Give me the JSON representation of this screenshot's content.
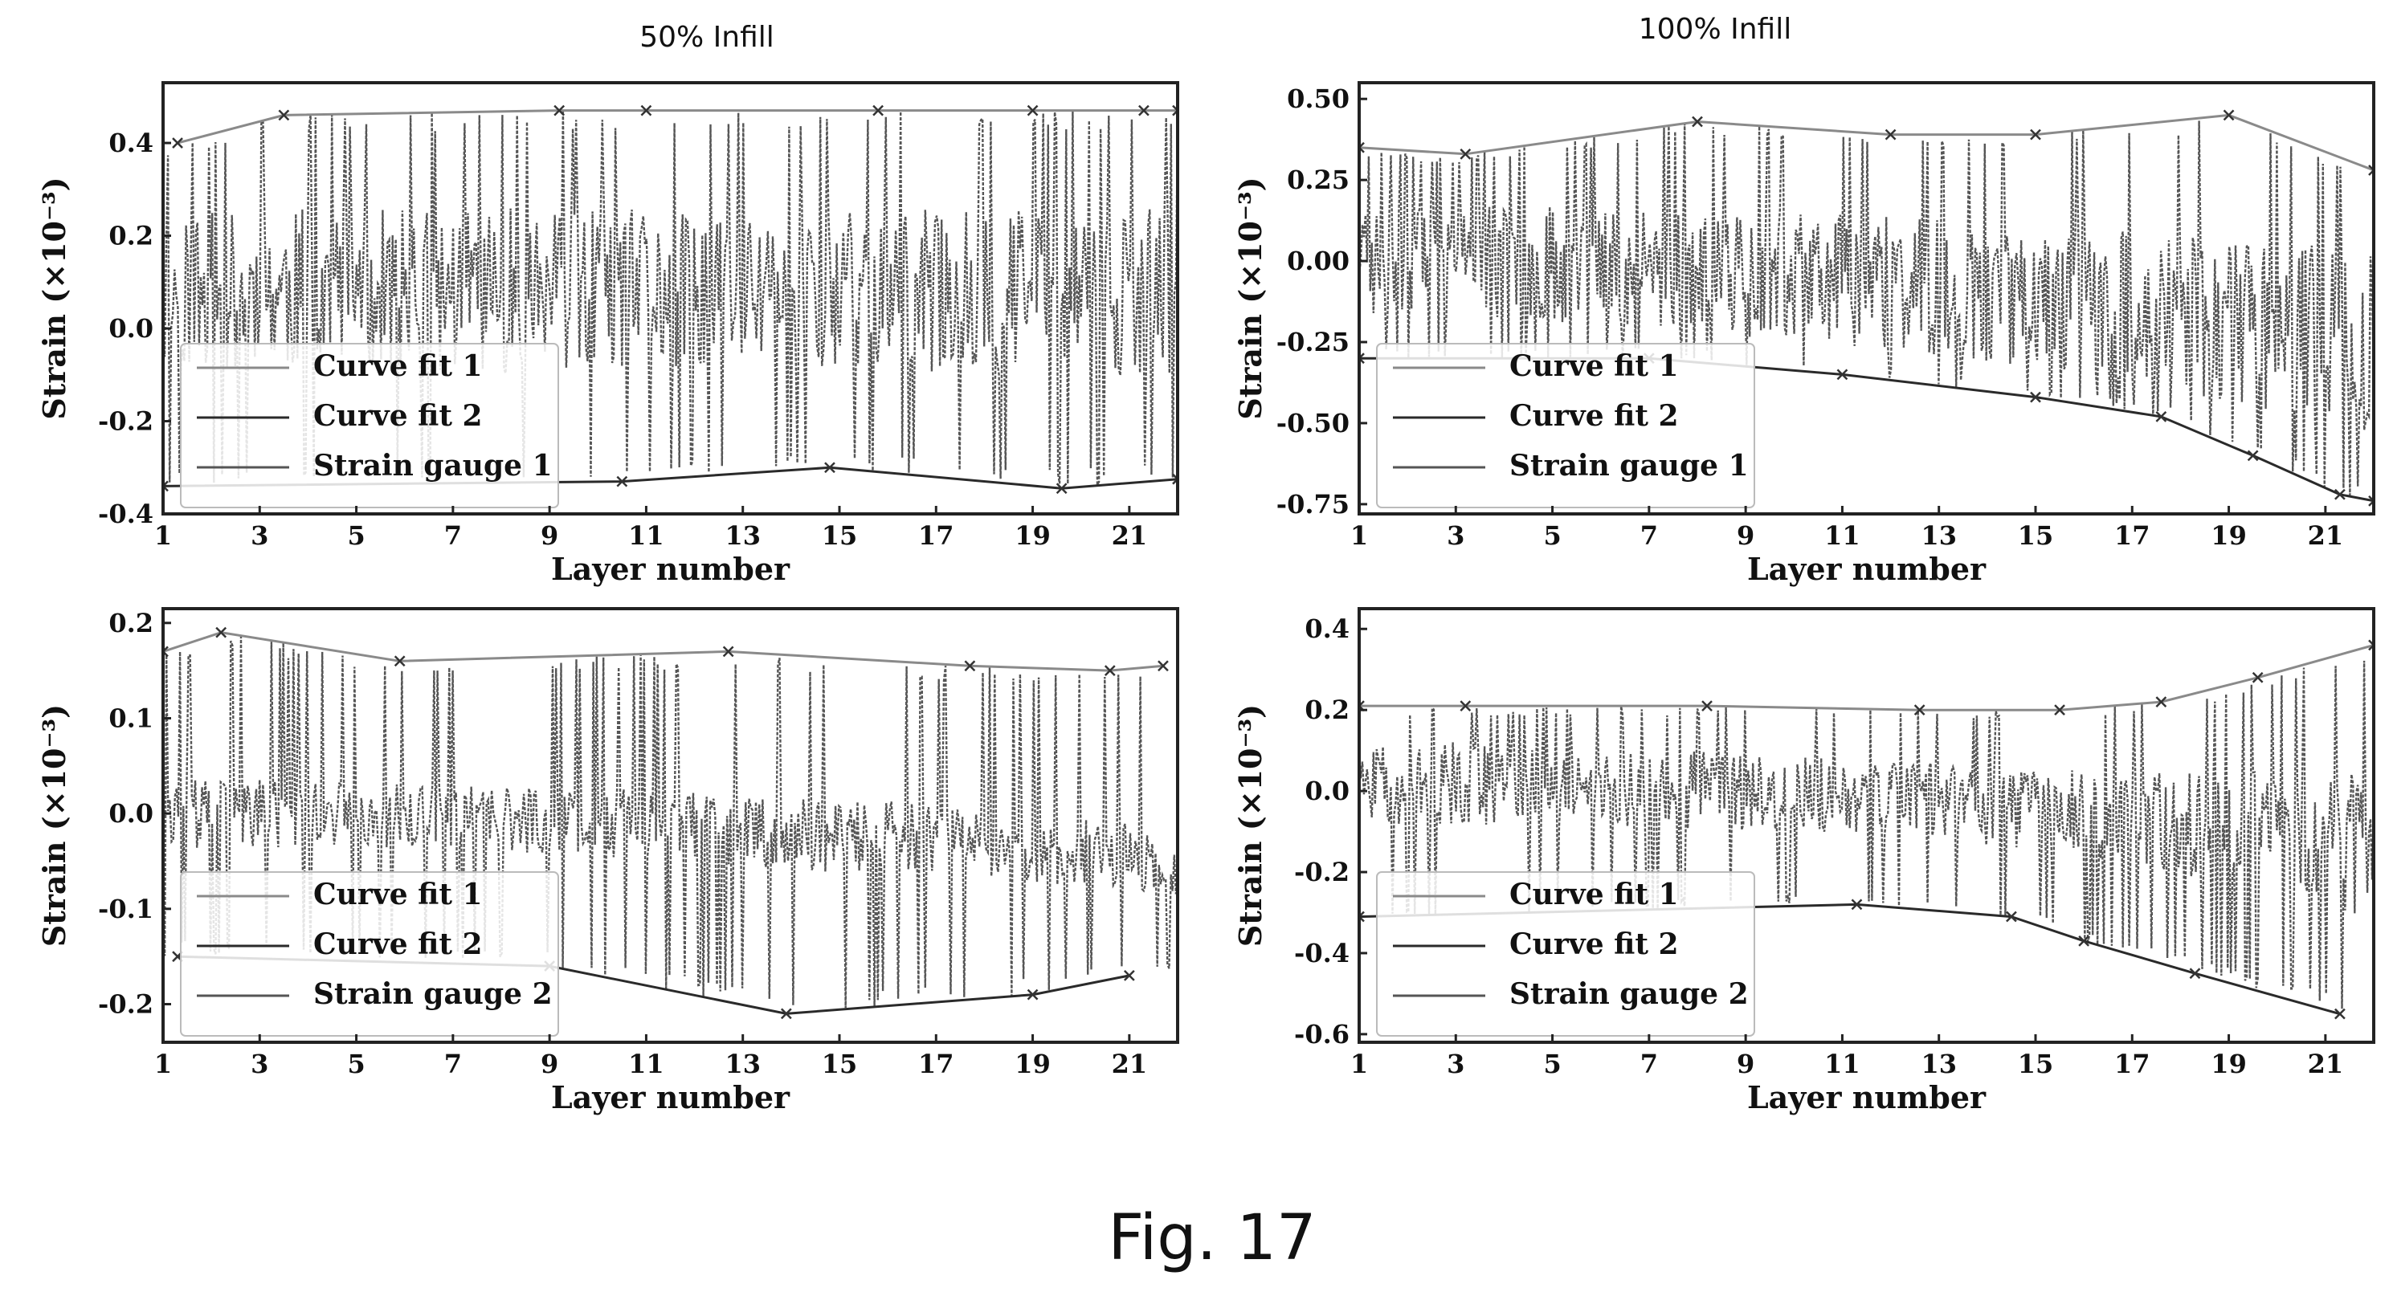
{
  "figure": {
    "caption": "Fig. 17",
    "column_titles": [
      "50% Infill",
      "100% Infill"
    ]
  },
  "colors": {
    "strain": "#555555",
    "fit1": "#8a8a8a",
    "fit2": "#2a2a2a",
    "frame": "#222222",
    "marker": "#333333"
  },
  "chart_data": [
    {
      "type": "line",
      "column": "50% Infill",
      "xlabel": "Layer number",
      "ylabel": "Strain (×10⁻³)",
      "xlim": [
        1,
        22
      ],
      "ylim": [
        -0.4,
        0.53
      ],
      "xticks": [
        1,
        3,
        5,
        7,
        9,
        11,
        13,
        15,
        17,
        19,
        21
      ],
      "yticks": [
        -0.4,
        -0.2,
        0.0,
        0.2,
        0.4
      ],
      "ytick_labels": [
        "-0.4",
        "-0.2",
        "0.0",
        "0.2",
        "0.4"
      ],
      "legend": {
        "position": "lower-left",
        "entries": [
          "Curve fit 1",
          "Curve fit 2",
          "Strain gauge 1"
        ]
      },
      "series": [
        {
          "name": "Curve fit 1",
          "style": "upper-envelope",
          "x": [
            1.3,
            3.5,
            9.2,
            11.0,
            15.8,
            19.0,
            21.3,
            22.0
          ],
          "values": [
            0.4,
            0.46,
            0.47,
            0.47,
            0.47,
            0.47,
            0.47,
            0.47
          ]
        },
        {
          "name": "Curve fit 2",
          "style": "lower-envelope",
          "x": [
            1.0,
            10.5,
            14.8,
            19.6,
            22.0
          ],
          "values": [
            -0.34,
            -0.33,
            -0.3,
            -0.345,
            -0.325
          ]
        },
        {
          "name": "Strain gauge 1",
          "style": "signal",
          "seed": 11,
          "points": 620,
          "base": 0.08,
          "drift": 0.0,
          "spread": 0.25
        }
      ]
    },
    {
      "type": "line",
      "column": "100% Infill",
      "xlabel": "Layer number",
      "ylabel": "Strain (×10⁻³)",
      "xlim": [
        1,
        22
      ],
      "ylim": [
        -0.78,
        0.55
      ],
      "xticks": [
        1,
        3,
        5,
        7,
        9,
        11,
        13,
        15,
        17,
        19,
        21
      ],
      "yticks": [
        -0.75,
        -0.5,
        -0.25,
        0.0,
        0.25,
        0.5
      ],
      "ytick_labels": [
        "-0.75",
        "-0.50",
        "-0.25",
        "0.00",
        "0.25",
        "0.50"
      ],
      "legend": {
        "position": "lower-left",
        "entries": [
          "Curve fit 1",
          "Curve fit 2",
          "Strain gauge 1"
        ]
      },
      "series": [
        {
          "name": "Curve fit 1",
          "style": "upper-envelope",
          "x": [
            1.0,
            3.2,
            8.0,
            12.0,
            15.0,
            19.0,
            22.0
          ],
          "values": [
            0.35,
            0.33,
            0.43,
            0.39,
            0.39,
            0.45,
            0.28
          ]
        },
        {
          "name": "Curve fit 2",
          "style": "lower-envelope",
          "x": [
            1.0,
            7.0,
            11.0,
            15.0,
            17.6,
            19.5,
            21.3,
            22.0
          ],
          "values": [
            -0.3,
            -0.3,
            -0.35,
            -0.42,
            -0.48,
            -0.6,
            -0.72,
            -0.74
          ]
        },
        {
          "name": "Strain gauge 1",
          "style": "signal",
          "seed": 23,
          "points": 640,
          "base": 0.0,
          "drift": -0.25,
          "spread": 0.3
        }
      ]
    },
    {
      "type": "line",
      "column": "50% Infill",
      "xlabel": "Layer number",
      "ylabel": "Strain (×10⁻³)",
      "xlim": [
        1,
        22
      ],
      "ylim": [
        -0.24,
        0.215
      ],
      "xticks": [
        1,
        3,
        5,
        7,
        9,
        11,
        13,
        15,
        17,
        19,
        21
      ],
      "yticks": [
        -0.2,
        -0.1,
        0.0,
        0.1,
        0.2
      ],
      "ytick_labels": [
        "-0.2",
        "-0.1",
        "0.0",
        "0.1",
        "0.2"
      ],
      "legend": {
        "position": "lower-left",
        "entries": [
          "Curve fit 1",
          "Curve fit 2",
          "Strain gauge 2"
        ]
      },
      "series": [
        {
          "name": "Curve fit 1",
          "style": "upper-envelope",
          "x": [
            1.0,
            2.2,
            5.9,
            12.7,
            17.7,
            20.6,
            21.7
          ],
          "values": [
            0.17,
            0.19,
            0.16,
            0.17,
            0.155,
            0.15,
            0.155
          ]
        },
        {
          "name": "Curve fit 2",
          "style": "lower-envelope",
          "x": [
            1.3,
            9.0,
            13.9,
            19.0,
            21.0
          ],
          "values": [
            -0.15,
            -0.16,
            -0.21,
            -0.19,
            -0.17
          ]
        },
        {
          "name": "Strain gauge 2",
          "style": "signal",
          "seed": 37,
          "points": 600,
          "base": 0.0,
          "drift": -0.05,
          "spread": 0.12
        }
      ]
    },
    {
      "type": "line",
      "column": "100% Infill",
      "xlabel": "Layer number",
      "ylabel": "Strain (×10⁻³)",
      "xlim": [
        1,
        22
      ],
      "ylim": [
        -0.62,
        0.45
      ],
      "xticks": [
        1,
        3,
        5,
        7,
        9,
        11,
        13,
        15,
        17,
        19,
        21
      ],
      "yticks": [
        -0.6,
        -0.4,
        -0.2,
        0.0,
        0.2,
        0.4
      ],
      "ytick_labels": [
        "-0.6",
        "-0.4",
        "-0.2",
        "0.0",
        "0.2",
        "0.4"
      ],
      "legend": {
        "position": "lower-left",
        "entries": [
          "Curve fit 1",
          "Curve fit 2",
          "Strain gauge 2"
        ]
      },
      "series": [
        {
          "name": "Curve fit 1",
          "style": "upper-envelope",
          "x": [
            1.0,
            3.2,
            8.2,
            12.6,
            15.5,
            17.6,
            19.6,
            22.0
          ],
          "values": [
            0.21,
            0.21,
            0.21,
            0.2,
            0.2,
            0.22,
            0.28,
            0.36
          ]
        },
        {
          "name": "Curve fit 2",
          "style": "lower-envelope",
          "x": [
            1.0,
            11.3,
            14.5,
            16.0,
            18.3,
            21.3
          ],
          "values": [
            -0.31,
            -0.28,
            -0.31,
            -0.37,
            -0.45,
            -0.55
          ]
        },
        {
          "name": "Strain gauge 2",
          "style": "signal",
          "seed": 51,
          "points": 640,
          "base": 0.02,
          "drift": -0.15,
          "spread": 0.22
        }
      ]
    }
  ]
}
